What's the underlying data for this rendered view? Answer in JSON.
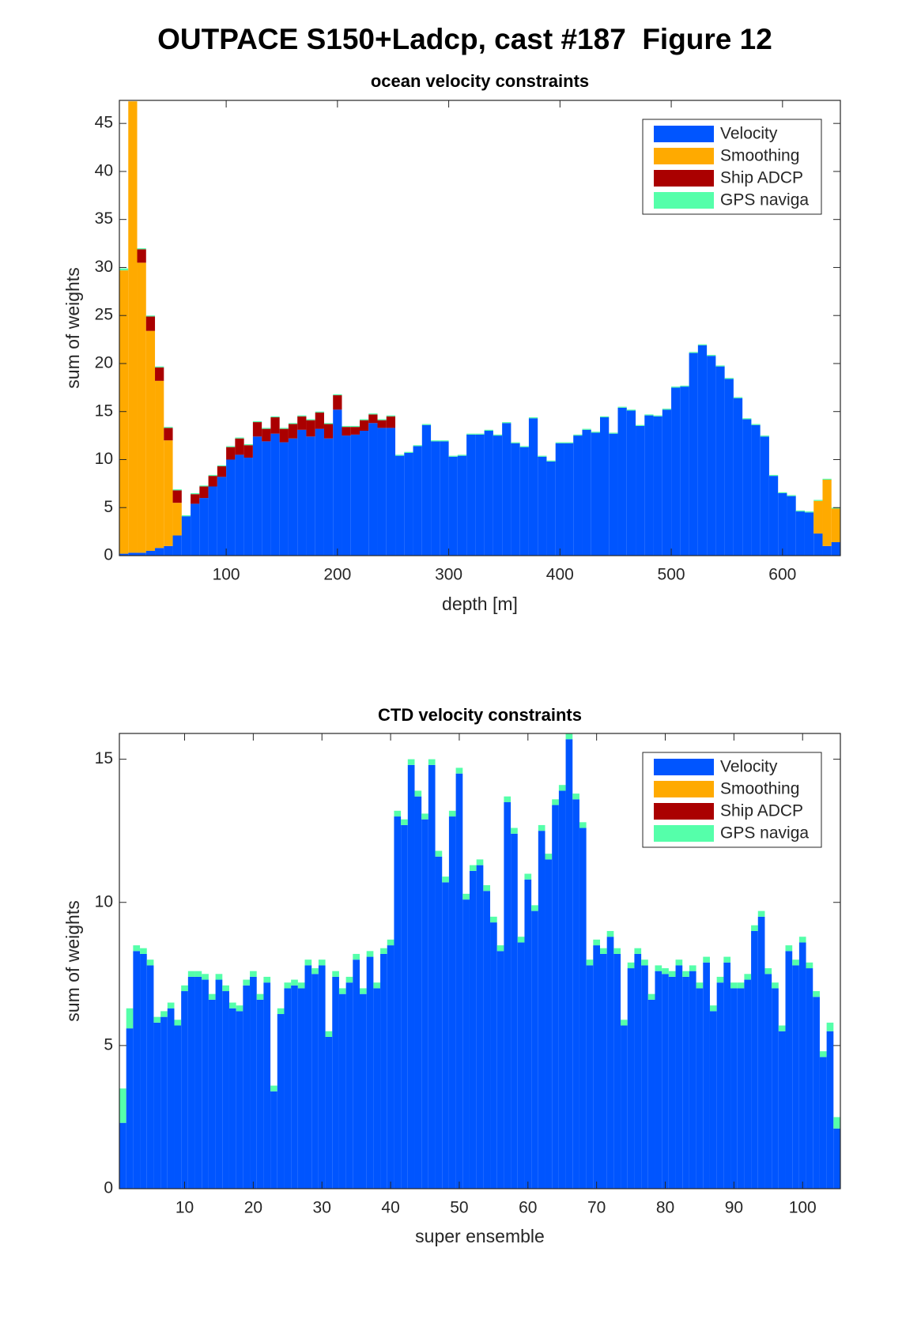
{
  "title": "OUTPACE S150+Ladcp, cast #187  Figure 12",
  "chart_data": [
    {
      "type": "bar",
      "stacked": true,
      "title": "ocean velocity constraints",
      "xlabel": "depth [m]",
      "ylabel": "sum of weights",
      "legend": "northeast",
      "x": [
        8,
        16,
        24,
        32,
        40,
        48,
        56,
        64,
        72,
        80,
        88,
        96,
        104,
        112,
        120,
        128,
        136,
        144,
        152,
        160,
        168,
        176,
        184,
        192,
        200,
        208,
        216,
        224,
        232,
        240,
        248,
        256,
        264,
        272,
        280,
        288,
        296,
        304,
        312,
        320,
        328,
        336,
        344,
        352,
        360,
        368,
        376,
        384,
        392,
        400,
        408,
        416,
        424,
        432,
        440,
        448,
        456,
        464,
        472,
        480,
        488,
        496,
        504,
        512,
        520,
        528,
        536,
        544,
        552,
        560,
        568,
        576,
        584,
        592,
        600,
        608,
        616,
        624,
        632,
        640,
        648
      ],
      "bar_width": 8,
      "xlim": [
        4,
        652
      ],
      "ylim": [
        0,
        47.4
      ],
      "xticks": [
        100,
        200,
        300,
        400,
        500,
        600
      ],
      "yticks": [
        0,
        5,
        10,
        15,
        20,
        25,
        30,
        35,
        40,
        45
      ],
      "series": [
        {
          "name": "Velocity",
          "color": "#0055ff",
          "values": [
            0.2,
            0.3,
            0.3,
            0.5,
            0.8,
            1.0,
            2.1,
            4.1,
            5.4,
            6.0,
            7.2,
            8.2,
            10.0,
            10.5,
            10.2,
            12.4,
            11.9,
            12.7,
            11.8,
            12.2,
            13.1,
            12.4,
            13.2,
            12.2,
            15.2,
            12.5,
            12.6,
            13.0,
            13.8,
            13.3,
            13.3,
            10.4,
            10.7,
            11.4,
            13.6,
            11.9,
            11.9,
            10.3,
            10.4,
            12.6,
            12.6,
            13.0,
            12.5,
            13.8,
            11.7,
            11.3,
            14.3,
            10.3,
            9.8,
            11.7,
            11.7,
            12.5,
            13.1,
            12.8,
            14.4,
            12.7,
            15.4,
            15.1,
            13.5,
            14.6,
            14.5,
            15.2,
            17.5,
            17.6,
            21.1,
            21.9,
            20.8,
            19.7,
            18.4,
            16.4,
            14.2,
            13.6,
            12.4,
            8.3,
            6.5,
            6.2,
            4.6,
            4.5,
            2.3,
            1.0,
            1.4
          ]
        },
        {
          "name": "Smoothing",
          "color": "#ffaa00",
          "values": [
            29.5,
            47.0,
            30.2,
            22.9,
            17.4,
            11.0,
            3.4,
            0,
            0,
            0,
            0,
            0,
            0,
            0,
            0,
            0,
            0,
            0,
            0,
            0,
            0,
            0,
            0,
            0,
            0,
            0,
            0,
            0,
            0,
            0,
            0,
            0,
            0,
            0,
            0,
            0,
            0,
            0,
            0,
            0,
            0,
            0,
            0,
            0,
            0,
            0,
            0,
            0,
            0,
            0,
            0,
            0,
            0,
            0,
            0,
            0,
            0,
            0,
            0,
            0,
            0,
            0,
            0,
            0,
            0,
            0,
            0,
            0,
            0,
            0,
            0,
            0,
            0,
            0,
            0,
            0,
            0,
            0,
            3.4,
            6.9,
            3.5
          ]
        },
        {
          "name": "Ship ADCP",
          "color": "#aa0000",
          "values": [
            0,
            0,
            1.4,
            1.5,
            1.4,
            1.3,
            1.3,
            0,
            1.0,
            1.2,
            1.1,
            1.1,
            1.3,
            1.7,
            1.3,
            1.5,
            1.3,
            1.7,
            1.4,
            1.5,
            1.4,
            1.7,
            1.7,
            1.5,
            1.5,
            0.9,
            0.8,
            1.1,
            0.9,
            0.8,
            1.2,
            0,
            0,
            0,
            0,
            0,
            0,
            0,
            0,
            0,
            0,
            0,
            0,
            0,
            0,
            0,
            0,
            0,
            0,
            0,
            0,
            0,
            0,
            0,
            0,
            0,
            0,
            0,
            0,
            0,
            0,
            0,
            0,
            0,
            0,
            0,
            0,
            0,
            0,
            0,
            0,
            0,
            0,
            0,
            0,
            0,
            0,
            0,
            0,
            0,
            0
          ]
        },
        {
          "name": "GPS naviga",
          "color": "#55ffaa",
          "values": [
            0.2,
            0,
            0.1,
            0.1,
            0.1,
            0.1,
            0.1,
            0.1,
            0.1,
            0.1,
            0.1,
            0.1,
            0.1,
            0.1,
            0.1,
            0.1,
            0.1,
            0.1,
            0.1,
            0.1,
            0.1,
            0.1,
            0.1,
            0.1,
            0.1,
            0.1,
            0.1,
            0.1,
            0.1,
            0.1,
            0.1,
            0.1,
            0.1,
            0.1,
            0.1,
            0.1,
            0.1,
            0.1,
            0.1,
            0.1,
            0.1,
            0.1,
            0.1,
            0.1,
            0.1,
            0.1,
            0.1,
            0.1,
            0.1,
            0.1,
            0.1,
            0.1,
            0.1,
            0.1,
            0.1,
            0.1,
            0.1,
            0.1,
            0.1,
            0.1,
            0.1,
            0.1,
            0.1,
            0.1,
            0.1,
            0.1,
            0.1,
            0.1,
            0.1,
            0.1,
            0.1,
            0.1,
            0.1,
            0.1,
            0.1,
            0.1,
            0.1,
            0.1,
            0.1,
            0.1,
            0.1
          ]
        }
      ]
    },
    {
      "type": "bar",
      "stacked": true,
      "title": "CTD velocity constraints",
      "xlabel": "super ensemble",
      "ylabel": "sum of weights",
      "legend": "northeast",
      "x": [
        1,
        2,
        3,
        4,
        5,
        6,
        7,
        8,
        9,
        10,
        11,
        12,
        13,
        14,
        15,
        16,
        17,
        18,
        19,
        20,
        21,
        22,
        23,
        24,
        25,
        26,
        27,
        28,
        29,
        30,
        31,
        32,
        33,
        34,
        35,
        36,
        37,
        38,
        39,
        40,
        41,
        42,
        43,
        44,
        45,
        46,
        47,
        48,
        49,
        50,
        51,
        52,
        53,
        54,
        55,
        56,
        57,
        58,
        59,
        60,
        61,
        62,
        63,
        64,
        65,
        66,
        67,
        68,
        69,
        70,
        71,
        72,
        73,
        74,
        75,
        76,
        77,
        78,
        79,
        80,
        81,
        82,
        83,
        84,
        85,
        86,
        87,
        88,
        89,
        90,
        91,
        92,
        93,
        94,
        95,
        96,
        97,
        98,
        99,
        100,
        101,
        102,
        103,
        104,
        105
      ],
      "bar_width": 1,
      "xlim": [
        0.5,
        105.5
      ],
      "ylim": [
        0,
        15.9
      ],
      "xticks": [
        10,
        20,
        30,
        40,
        50,
        60,
        70,
        80,
        90,
        100
      ],
      "yticks": [
        0,
        5,
        10,
        15
      ],
      "series": [
        {
          "name": "Velocity",
          "color": "#0055ff",
          "values": [
            2.3,
            5.6,
            8.3,
            8.2,
            7.8,
            5.8,
            6.0,
            6.3,
            5.7,
            6.9,
            7.4,
            7.4,
            7.3,
            6.6,
            7.3,
            6.9,
            6.3,
            6.2,
            7.1,
            7.4,
            6.6,
            7.2,
            3.4,
            6.1,
            7.0,
            7.1,
            7.0,
            7.8,
            7.5,
            7.8,
            5.3,
            7.4,
            6.8,
            7.2,
            8.0,
            6.8,
            8.1,
            7.0,
            8.2,
            8.5,
            13.0,
            12.7,
            14.8,
            13.7,
            12.9,
            14.8,
            11.6,
            10.7,
            13.0,
            14.5,
            10.1,
            11.1,
            11.3,
            10.4,
            9.3,
            8.3,
            13.5,
            12.4,
            8.6,
            10.8,
            9.7,
            12.5,
            11.5,
            13.4,
            13.9,
            15.7,
            13.6,
            12.6,
            7.8,
            8.5,
            8.2,
            8.8,
            8.2,
            5.7,
            7.7,
            8.2,
            7.8,
            6.6,
            7.6,
            7.5,
            7.4,
            7.8,
            7.4,
            7.6,
            7.0,
            7.9,
            6.2,
            7.2,
            7.9,
            7.0,
            7.0,
            7.3,
            9.0,
            9.5,
            7.5,
            7.0,
            5.5,
            8.3,
            7.8,
            8.6,
            7.7,
            6.7,
            4.6,
            5.5,
            2.1
          ]
        },
        {
          "name": "Smoothing",
          "color": "#ffaa00",
          "values": [
            0,
            0,
            0,
            0,
            0,
            0,
            0,
            0,
            0,
            0,
            0,
            0,
            0,
            0,
            0,
            0,
            0,
            0,
            0,
            0,
            0,
            0,
            0,
            0,
            0,
            0,
            0,
            0,
            0,
            0,
            0,
            0,
            0,
            0,
            0,
            0,
            0,
            0,
            0,
            0,
            0,
            0,
            0,
            0,
            0,
            0,
            0,
            0,
            0,
            0,
            0,
            0,
            0,
            0,
            0,
            0,
            0,
            0,
            0,
            0,
            0,
            0,
            0,
            0,
            0,
            0,
            0,
            0,
            0,
            0,
            0,
            0,
            0,
            0,
            0,
            0,
            0,
            0,
            0,
            0,
            0,
            0,
            0,
            0,
            0,
            0,
            0,
            0,
            0,
            0,
            0,
            0,
            0,
            0,
            0,
            0,
            0,
            0,
            0,
            0,
            0,
            0,
            0,
            0,
            0
          ]
        },
        {
          "name": "Ship ADCP",
          "color": "#aa0000",
          "values": [
            0,
            0,
            0,
            0,
            0,
            0,
            0,
            0,
            0,
            0,
            0,
            0,
            0,
            0,
            0,
            0,
            0,
            0,
            0,
            0,
            0,
            0,
            0,
            0,
            0,
            0,
            0,
            0,
            0,
            0,
            0,
            0,
            0,
            0,
            0,
            0,
            0,
            0,
            0,
            0,
            0,
            0,
            0,
            0,
            0,
            0,
            0,
            0,
            0,
            0,
            0,
            0,
            0,
            0,
            0,
            0,
            0,
            0,
            0,
            0,
            0,
            0,
            0,
            0,
            0,
            0,
            0,
            0,
            0,
            0,
            0,
            0,
            0,
            0,
            0,
            0,
            0,
            0,
            0,
            0,
            0,
            0,
            0,
            0,
            0,
            0,
            0,
            0,
            0,
            0,
            0,
            0,
            0,
            0,
            0,
            0,
            0,
            0,
            0,
            0,
            0,
            0,
            0,
            0,
            0
          ]
        },
        {
          "name": "GPS naviga",
          "color": "#55ffaa",
          "values": [
            1.2,
            0.7,
            0.2,
            0.2,
            0.2,
            0.2,
            0.2,
            0.2,
            0.2,
            0.2,
            0.2,
            0.2,
            0.2,
            0.2,
            0.2,
            0.2,
            0.2,
            0.2,
            0.2,
            0.2,
            0.2,
            0.2,
            0.2,
            0.2,
            0.2,
            0.2,
            0.2,
            0.2,
            0.2,
            0.2,
            0.2,
            0.2,
            0.2,
            0.2,
            0.2,
            0.2,
            0.2,
            0.2,
            0.2,
            0.2,
            0.2,
            0.2,
            0.2,
            0.2,
            0.2,
            0.2,
            0.2,
            0.2,
            0.2,
            0.2,
            0.2,
            0.2,
            0.2,
            0.2,
            0.2,
            0.2,
            0.2,
            0.2,
            0.2,
            0.2,
            0.2,
            0.2,
            0.2,
            0.2,
            0.2,
            0.2,
            0.2,
            0.2,
            0.2,
            0.2,
            0.2,
            0.2,
            0.2,
            0.2,
            0.2,
            0.2,
            0.2,
            0.2,
            0.2,
            0.2,
            0.2,
            0.2,
            0.2,
            0.2,
            0.2,
            0.2,
            0.2,
            0.2,
            0.2,
            0.2,
            0.2,
            0.2,
            0.2,
            0.2,
            0.2,
            0.2,
            0.2,
            0.2,
            0.2,
            0.2,
            0.2,
            0.2,
            0.2,
            0.3,
            0.4
          ]
        }
      ]
    }
  ]
}
